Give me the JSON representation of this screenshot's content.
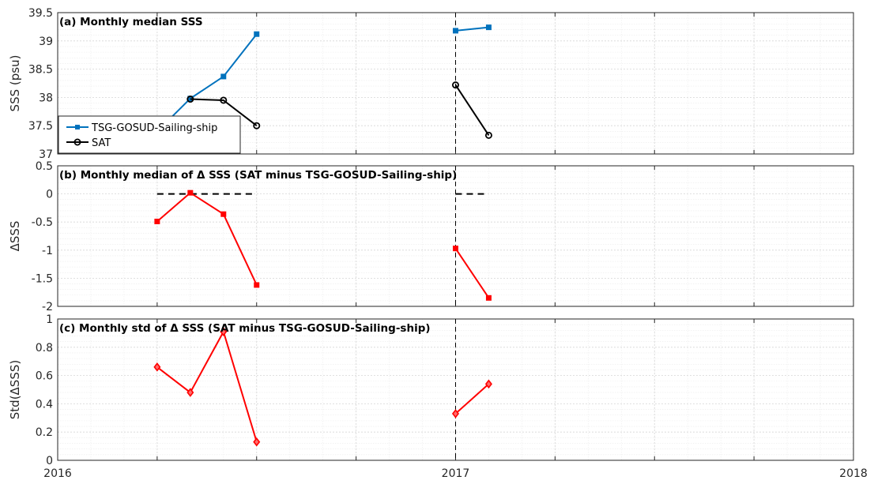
{
  "chart_data": [
    {
      "type": "line",
      "title": "(a) Monthly median SSS",
      "ylabel": "SSS (psu)",
      "xlim": [
        "2016-01",
        "2018-01"
      ],
      "ylim": [
        37,
        39.5
      ],
      "yticks": [
        "37",
        "37.5",
        "38",
        "38.5",
        "39",
        "39.5"
      ],
      "xticks": [
        "2016",
        "2017",
        "2018"
      ],
      "grid": true,
      "legend_position": "bottom-left",
      "series": [
        {
          "name": "TSG-GOSUD-Sailing-ship",
          "color": "#0072BD",
          "marker": "square",
          "points": [
            [
              "2016-04",
              37.4
            ],
            [
              "2016-05",
              37.98
            ],
            [
              "2016-06",
              38.37
            ],
            [
              "2016-07",
              39.12
            ],
            [
              "2017-01",
              39.18
            ],
            [
              "2017-02",
              39.24
            ]
          ]
        },
        {
          "name": "SAT",
          "color": "#000000",
          "marker": "circle",
          "points": [
            [
              "2016-05",
              37.97
            ],
            [
              "2016-06",
              37.95
            ],
            [
              "2016-07",
              37.5
            ],
            [
              "2017-01",
              38.22
            ],
            [
              "2017-02",
              37.33
            ]
          ]
        }
      ],
      "reference_line_date": "2017-01"
    },
    {
      "type": "line",
      "title": "(b) Monthly median of Δ SSS (SAT minus TSG-GOSUD-Sailing-ship)",
      "ylabel": "ΔSSS",
      "xlim": [
        "2016-01",
        "2018-01"
      ],
      "ylim": [
        -2,
        0.5
      ],
      "yticks": [
        "-2",
        "-1.5",
        "-1",
        "-0.5",
        "0",
        "0.5"
      ],
      "grid": true,
      "series": [
        {
          "color": "#FF0000",
          "marker": "square",
          "points": [
            [
              "2016-04",
              -0.49
            ],
            [
              "2016-05",
              0.02
            ],
            [
              "2016-06",
              -0.36
            ],
            [
              "2016-07",
              -1.62
            ],
            [
              "2017-01",
              -0.97
            ],
            [
              "2017-02",
              -1.85
            ]
          ]
        }
      ],
      "zero_line_segments": [
        [
          "2016-04",
          "2016-07"
        ],
        [
          "2017-01",
          "2017-02"
        ]
      ],
      "reference_line_date": "2017-01"
    },
    {
      "type": "line",
      "title": "(c) Monthly std of Δ SSS (SAT minus TSG-GOSUD-Sailing-ship)",
      "ylabel": "Std(ΔSSS)",
      "xlim": [
        "2016-01",
        "2018-01"
      ],
      "ylim": [
        0,
        1
      ],
      "yticks": [
        "0",
        "0.2",
        "0.4",
        "0.6",
        "0.8",
        "1"
      ],
      "xticks": [
        "2016",
        "2017",
        "2018"
      ],
      "grid": true,
      "series": [
        {
          "color": "#FF0000",
          "marker": "diamond",
          "points": [
            [
              "2016-04",
              0.66
            ],
            [
              "2016-05",
              0.48
            ],
            [
              "2016-06",
              0.91
            ],
            [
              "2016-07",
              0.13
            ],
            [
              "2017-01",
              0.33
            ],
            [
              "2017-02",
              0.54
            ]
          ]
        }
      ],
      "reference_line_date": "2017-01"
    }
  ]
}
